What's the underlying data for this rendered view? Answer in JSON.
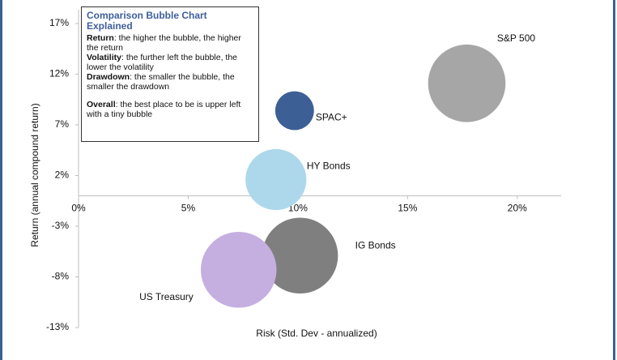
{
  "chart_data": {
    "type": "bubble",
    "x_label": "Risk (Std. Dev - annualized)",
    "y_label": "Return (annual compound return)",
    "xlim": [
      0,
      22
    ],
    "xticks": [
      {
        "value": 0,
        "label": "0%"
      },
      {
        "value": 5,
        "label": "5%"
      },
      {
        "value": 10,
        "label": "10%"
      },
      {
        "value": 15,
        "label": "15%"
      },
      {
        "value": 20,
        "label": "20%"
      }
    ],
    "ylim": [
      -13,
      17
    ],
    "yticks": [
      {
        "value": 17,
        "label": "17%"
      },
      {
        "value": 12,
        "label": "12%"
      },
      {
        "value": 7,
        "label": "7%"
      },
      {
        "value": 2,
        "label": "2%"
      },
      {
        "value": -3,
        "label": "-3%"
      },
      {
        "value": -8,
        "label": "-8%"
      },
      {
        "value": -13,
        "label": "-13%"
      }
    ],
    "series": [
      {
        "name": "S&P 500",
        "color": "#a6a6a6",
        "x": [
          17.7
        ],
        "values": [
          11.1
        ],
        "sizes": [
          34
        ]
      },
      {
        "name": "SPAC+",
        "color": "#3c5f95",
        "x": [
          9.85
        ],
        "values": [
          8.4
        ],
        "sizes": [
          8.5
        ]
      },
      {
        "name": "HY Bonds",
        "color": "#add8ec",
        "x": [
          9.0
        ],
        "values": [
          1.6
        ],
        "sizes": [
          21
        ]
      },
      {
        "name": "IG Bonds",
        "color": "#7f7f7f",
        "x": [
          10.1
        ],
        "values": [
          -5.9
        ],
        "sizes": [
          32.5
        ]
      },
      {
        "name": "US Treasury",
        "color": "#c5aee0",
        "x": [
          7.3
        ],
        "values": [
          -7.3
        ],
        "sizes": [
          32.5
        ]
      }
    ]
  },
  "explainer": {
    "title": "Comparison Bubble Chart Explained",
    "items": [
      {
        "term": "Return",
        "text": ": the higher the bubble, the higher the return"
      },
      {
        "term": "Volatility",
        "text": ": the further left the bubble, the lower the volatility"
      },
      {
        "term": "Drawdown",
        "text": ": the smaller the bubble, the smaller the drawdown"
      }
    ],
    "overall": {
      "term": "Overall",
      "text": ": the best place to be is upper left with a tiny bubble"
    }
  }
}
